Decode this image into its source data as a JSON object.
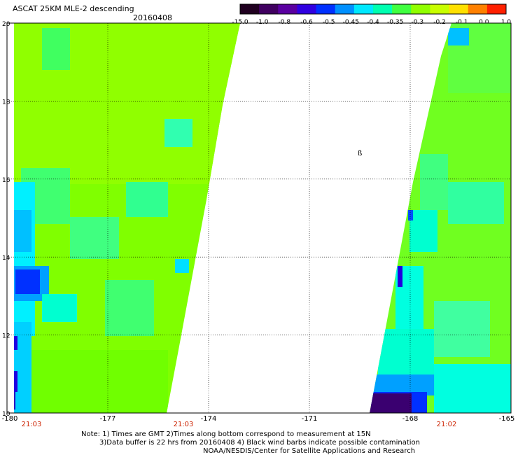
{
  "header": {
    "title": "ASCAT 25KM MLE-2 descending",
    "date": "20160408"
  },
  "colorbar": {
    "tick_labels": [
      "-15.0",
      "-1.0",
      "-0.8",
      "-0.6",
      "-0.5",
      "-0.45",
      "-0.4",
      "-0.35",
      "-0.3",
      "-0.2",
      "-0.1",
      "0.0",
      "1.0"
    ],
    "colors": [
      "#200020",
      "#400060",
      "#5a00a0",
      "#3000e0",
      "#0030ff",
      "#0090ff",
      "#00e8ff",
      "#00ffb0",
      "#40ff40",
      "#90ff00",
      "#c8ff00",
      "#ffe000",
      "#ff8000",
      "#ff2000"
    ]
  },
  "map": {
    "lat_labels": [
      "20",
      "18",
      "16",
      "14",
      "12",
      "10"
    ],
    "lon_labels": [
      "-180",
      "-177",
      "-174",
      "-171",
      "-168",
      "-165"
    ],
    "time_labels": [
      "21:03",
      "21:03",
      "21:02"
    ],
    "swath_colors": {
      "green": "#66ff00",
      "lime": "#99ff00",
      "mint": "#33ff66",
      "cyan": "#00ffdd",
      "sky": "#00ccff",
      "blue": "#0044ff",
      "dark_blue": "#1100dd",
      "purple": "#3a0070"
    },
    "marker": "ß"
  },
  "notes": {
    "line1": "Note: 1) Times are GMT 2)Times along bottom correspond to measurement at 15N",
    "line2": "3)Data buffer is 22 hrs from 20160408 4) Black wind barbs indicate possible contamination",
    "line3": "NOAA/NESDIS/Center for Satellite Applications and Research"
  }
}
